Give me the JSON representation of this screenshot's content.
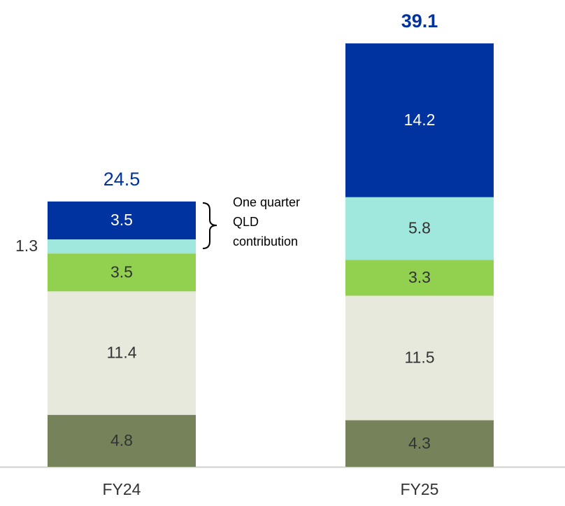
{
  "chart_data": {
    "type": "stacked_bar",
    "categories": [
      "FY24",
      "FY25"
    ],
    "series": [
      {
        "color": "#76825a",
        "values": [
          4.8,
          4.3
        ]
      },
      {
        "color": "#e8e9dd",
        "values": [
          11.4,
          11.5
        ]
      },
      {
        "color": "#92d050",
        "values": [
          3.5,
          3.3
        ]
      },
      {
        "color": "#a0e8de",
        "values": [
          1.3,
          5.8
        ]
      },
      {
        "color": "#0033a0",
        "values": [
          3.5,
          14.2
        ]
      }
    ],
    "totals": [
      24.5,
      39.1
    ],
    "annotation": [
      "One quarter",
      "QLD",
      "contribution"
    ]
  }
}
